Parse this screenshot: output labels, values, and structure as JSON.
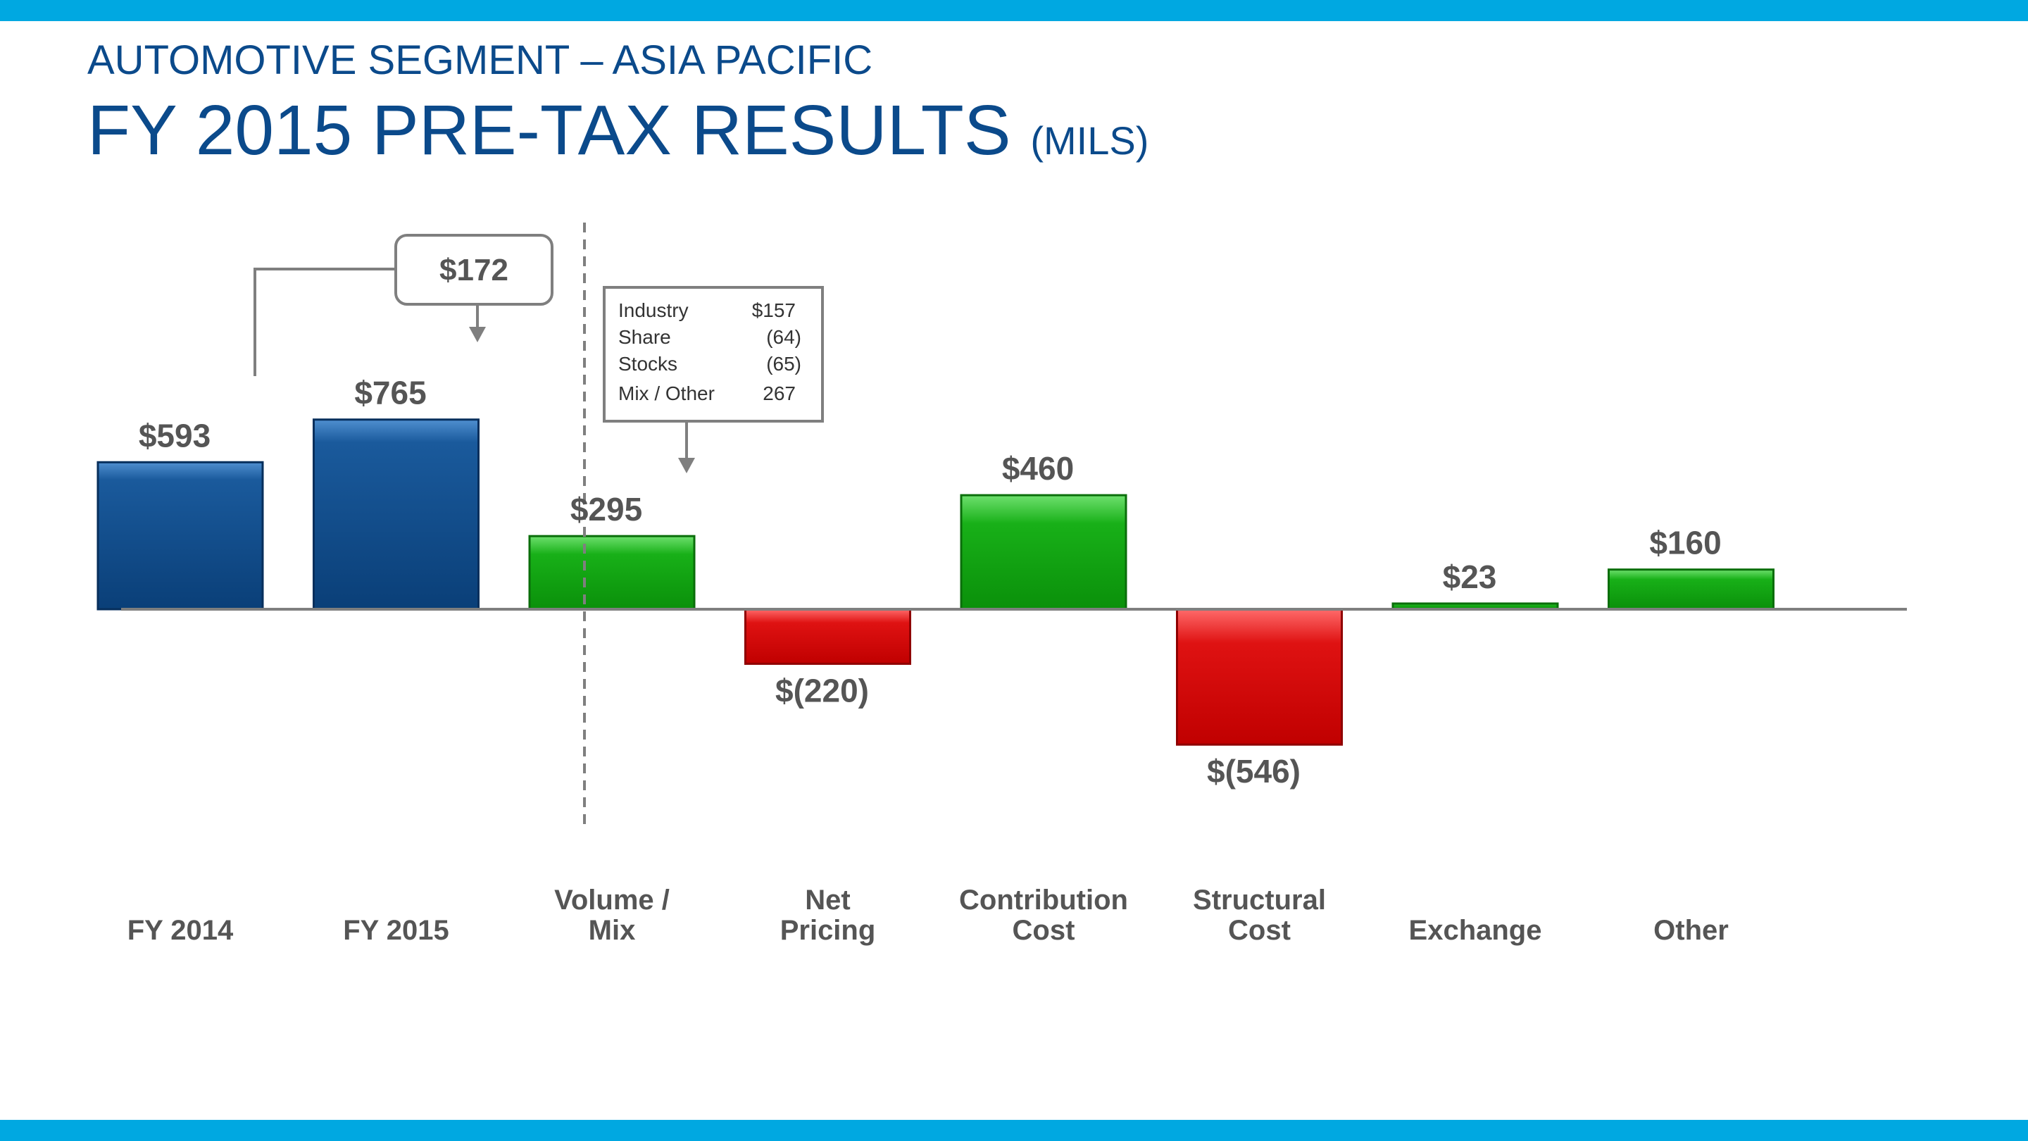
{
  "header": {
    "subtitle": "AUTOMOTIVE SEGMENT – ASIA PACIFIC",
    "title": "FY 2015 PRE-TAX RESULTS",
    "unit": "(MILS)"
  },
  "colors": {
    "band": "#00a8e1",
    "title": "#0b4a8b",
    "base_bar": "#0b4a8b",
    "positive": "#17a817",
    "negative": "#d0060c",
    "label": "#555555"
  },
  "chart_data": {
    "type": "bar",
    "title": "FY 2015 PRE-TAX RESULTS (MILS)",
    "xlabel": "",
    "ylabel": "",
    "ylim": [
      -700,
      800
    ],
    "categories": [
      "FY 2014",
      "FY 2015",
      "Volume / Mix",
      "Net Pricing",
      "Contribution Cost",
      "Structural Cost",
      "Exchange",
      "Other"
    ],
    "category_lines": [
      [
        "FY 2014"
      ],
      [
        "FY 2015"
      ],
      [
        "Volume /",
        "Mix"
      ],
      [
        "Net",
        "Pricing"
      ],
      [
        "Contribution",
        "Cost"
      ],
      [
        "Structural",
        "Cost"
      ],
      [
        "Exchange"
      ],
      [
        "Other"
      ]
    ],
    "values": [
      593,
      765,
      295,
      -220,
      460,
      -546,
      23,
      160
    ],
    "value_labels": [
      "$593",
      "$765",
      "$295",
      "$(220)",
      "$460",
      "$(546)",
      "$23",
      "$160"
    ],
    "kinds": [
      "base",
      "base",
      "pos",
      "neg",
      "pos",
      "neg",
      "pos",
      "pos"
    ],
    "change_callout": {
      "label": "$172",
      "from": "FY 2014",
      "to": "FY 2015"
    },
    "breakdown_callout": {
      "target": "Volume / Mix",
      "rows": [
        {
          "name": "Industry",
          "value": "$157"
        },
        {
          "name": "Share",
          "value": "(64)"
        },
        {
          "name": "Stocks",
          "value": "(65)"
        },
        {
          "name": "Mix / Other",
          "value": "267"
        }
      ]
    }
  }
}
